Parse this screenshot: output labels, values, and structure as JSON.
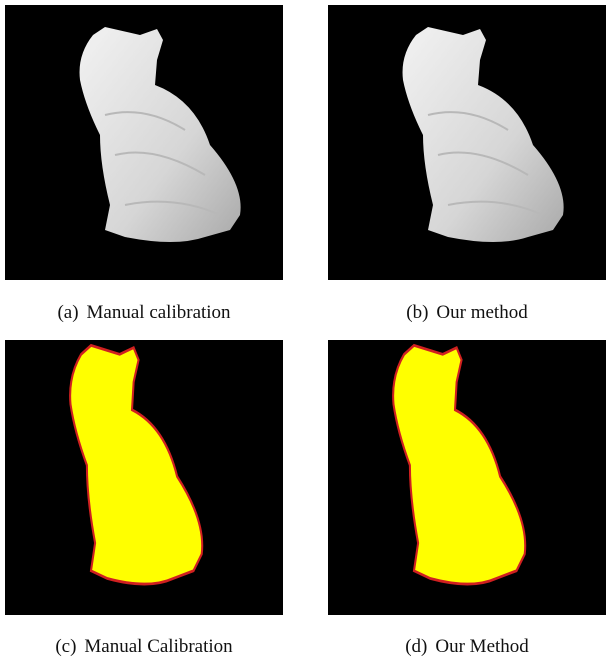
{
  "figures": [
    {
      "label": "(a)",
      "caption": "Manual calibration"
    },
    {
      "label": "(b)",
      "caption": "Our method"
    },
    {
      "label": "(c)",
      "caption": "Manual Calibration"
    },
    {
      "label": "(d)",
      "caption": "Our Method"
    }
  ]
}
